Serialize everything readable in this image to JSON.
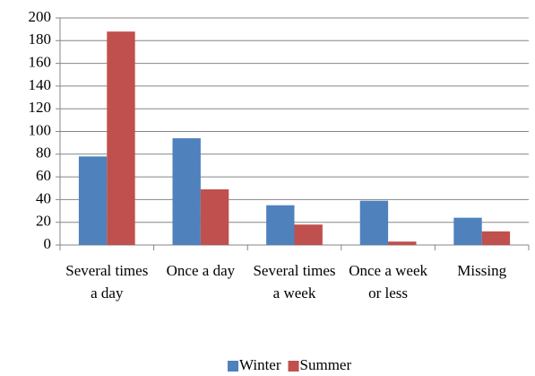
{
  "chart_data": {
    "type": "bar",
    "categories": [
      "Several times a day",
      "Once a day",
      "Several times a week",
      "Once a week or less",
      "Missing"
    ],
    "series": [
      {
        "name": "Winter",
        "color": "#4f81bd",
        "values": [
          78,
          94,
          35,
          39,
          24
        ]
      },
      {
        "name": "Summer",
        "color": "#c0504d",
        "values": [
          188,
          49,
          18,
          3,
          12
        ]
      }
    ],
    "ylim": [
      0,
      200
    ],
    "yticks": [
      0,
      20,
      40,
      60,
      80,
      100,
      120,
      140,
      160,
      180,
      200
    ],
    "grid": true,
    "legend": "bottom"
  }
}
